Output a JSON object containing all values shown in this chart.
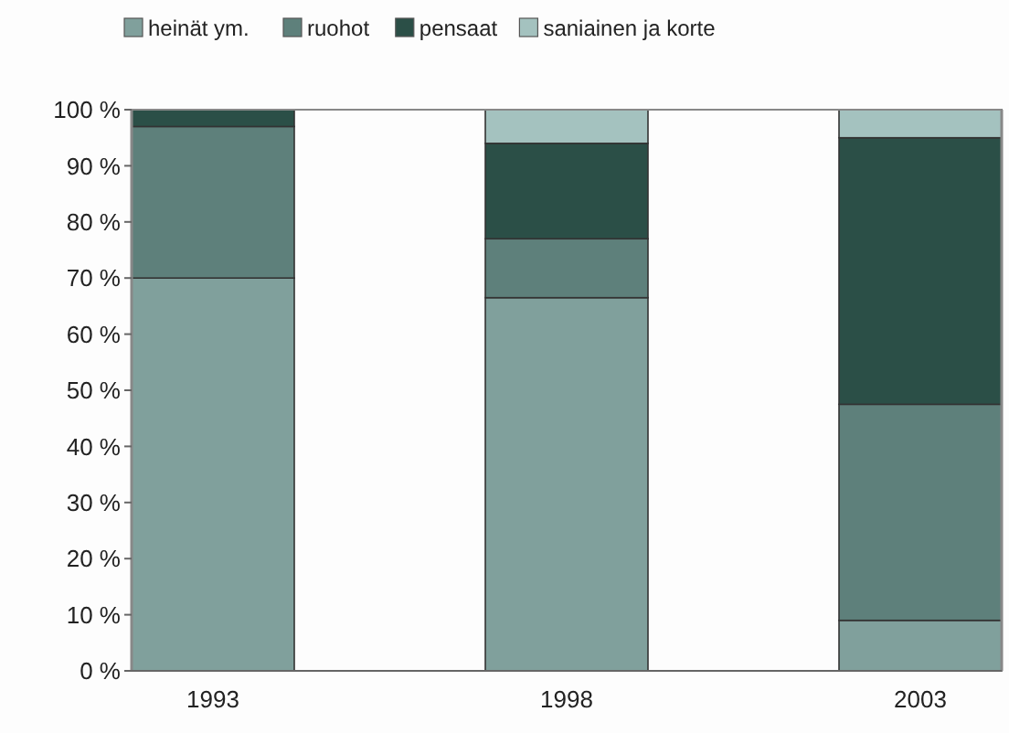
{
  "chart_data": {
    "type": "bar",
    "stacked": true,
    "categories": [
      "1993",
      "1998",
      "2003"
    ],
    "series": [
      {
        "name": "heinät ym.",
        "color": "#80a09c",
        "values": [
          70,
          66.5,
          9
        ]
      },
      {
        "name": "ruohot",
        "color": "#5e807b",
        "values": [
          27,
          10.5,
          38.5
        ]
      },
      {
        "name": "pensaat",
        "color": "#2b4f47",
        "values": [
          3,
          17,
          47.5
        ]
      },
      {
        "name": "saniainen ja korte",
        "color": "#a4c2bf",
        "values": [
          0,
          6,
          5
        ]
      }
    ],
    "ylim": [
      0,
      100
    ],
    "yticks": [
      {
        "value": 0,
        "label": "0 %"
      },
      {
        "value": 10,
        "label": "10 %"
      },
      {
        "value": 20,
        "label": "20 %"
      },
      {
        "value": 30,
        "label": "30 %"
      },
      {
        "value": 40,
        "label": "40 %"
      },
      {
        "value": 50,
        "label": "50 %"
      },
      {
        "value": 60,
        "label": "60 %"
      },
      {
        "value": 70,
        "label": "70 %"
      },
      {
        "value": 80,
        "label": "80 %"
      },
      {
        "value": 90,
        "label": "90 %"
      },
      {
        "value": 100,
        "label": "100 %"
      }
    ],
    "legend": "top",
    "grid": false
  }
}
